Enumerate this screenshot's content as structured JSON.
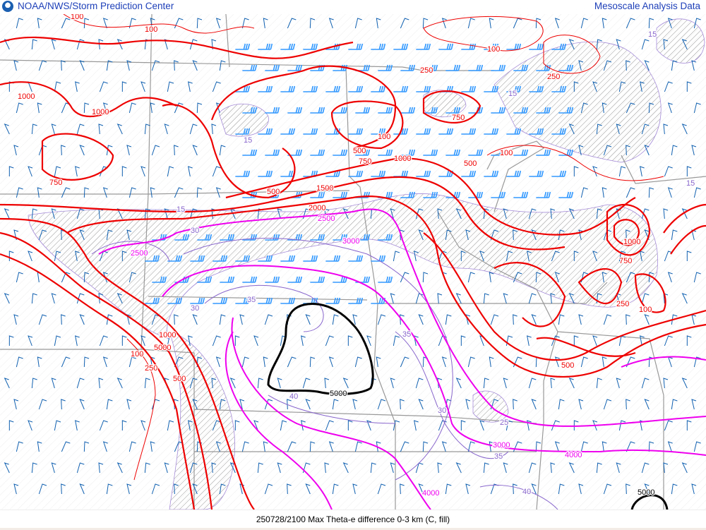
{
  "header": {
    "title": "NOAA/NWS/Storm Prediction Center",
    "right_title": "Mesoscale Analysis Data",
    "logo": "noaa-logo"
  },
  "footer": {
    "caption": "250728/2100 Max Theta-e difference 0-3 km (C, fill)"
  },
  "colors": {
    "cape_contour": "#ee0000",
    "cape_high": "#ee00ee",
    "theta_e": "#8866cc",
    "cape_5000": "#000000",
    "wind_barbs_upper": "#3399ff",
    "wind_barbs_lower": "#1060b0",
    "borders": "#999999",
    "hatch": "#888888"
  },
  "contour_labels": {
    "red": [
      "100",
      "1000",
      "1000",
      "750",
      "100",
      "250",
      "100",
      "250",
      "500",
      "750",
      "100",
      "500",
      "750",
      "1000",
      "500",
      "1500",
      "2000",
      "100",
      "500",
      "750",
      "1000",
      "250",
      "100",
      "500",
      "1000",
      "5000",
      "100",
      "250"
    ],
    "magenta": [
      "2500",
      "2500",
      "3000",
      "3000",
      "4000",
      "4000"
    ],
    "purple": [
      "15",
      "15",
      "15",
      "15",
      "30",
      "35",
      "35",
      "30",
      "35",
      "40",
      "25",
      "40",
      "15",
      "30"
    ],
    "black": [
      "5000",
      "5000"
    ]
  }
}
